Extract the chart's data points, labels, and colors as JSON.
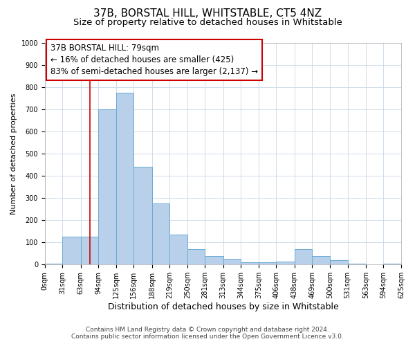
{
  "title": "37B, BORSTAL HILL, WHITSTABLE, CT5 4NZ",
  "subtitle": "Size of property relative to detached houses in Whitstable",
  "xlabel": "Distribution of detached houses by size in Whitstable",
  "ylabel": "Number of detached properties",
  "footer1": "Contains HM Land Registry data © Crown copyright and database right 2024.",
  "footer2": "Contains public sector information licensed under the Open Government Licence v3.0.",
  "bar_edges": [
    0,
    31,
    63,
    94,
    125,
    156,
    188,
    219,
    250,
    281,
    313,
    344,
    375,
    406,
    438,
    469,
    500,
    531,
    563,
    594,
    625
  ],
  "bar_heights": [
    5,
    125,
    125,
    700,
    775,
    440,
    275,
    135,
    70,
    40,
    25,
    10,
    10,
    15,
    70,
    40,
    20,
    5,
    0,
    5
  ],
  "bar_color": "#b8d0ea",
  "bar_edge_color": "#6aaad4",
  "vline_x": 79,
  "vline_color": "#cc0000",
  "annotation_text_line1": "37B BORSTAL HILL: 79sqm",
  "annotation_text_line2": "← 16% of detached houses are smaller (425)",
  "annotation_text_line3": "83% of semi-detached houses are larger (2,137) →",
  "ylim": [
    0,
    1000
  ],
  "xlim": [
    0,
    625
  ],
  "yticks": [
    0,
    100,
    200,
    300,
    400,
    500,
    600,
    700,
    800,
    900,
    1000
  ],
  "xtick_labels": [
    "0sqm",
    "31sqm",
    "63sqm",
    "94sqm",
    "125sqm",
    "156sqm",
    "188sqm",
    "219sqm",
    "250sqm",
    "281sqm",
    "313sqm",
    "344sqm",
    "375sqm",
    "406sqm",
    "438sqm",
    "469sqm",
    "500sqm",
    "531sqm",
    "563sqm",
    "594sqm",
    "625sqm"
  ],
  "xtick_positions": [
    0,
    31,
    63,
    94,
    125,
    156,
    188,
    219,
    250,
    281,
    313,
    344,
    375,
    406,
    438,
    469,
    500,
    531,
    563,
    594,
    625
  ],
  "grid_color": "#c8d8e8",
  "background_color": "#ffffff",
  "title_fontsize": 11,
  "subtitle_fontsize": 9.5,
  "xlabel_fontsize": 9,
  "ylabel_fontsize": 8,
  "tick_fontsize": 7,
  "footer_fontsize": 6.5,
  "annotation_fontsize": 8.5
}
